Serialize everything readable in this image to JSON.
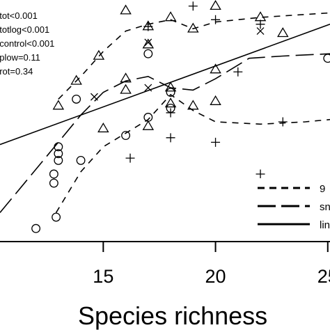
{
  "chart_data": {
    "type": "scatter",
    "xlabel": "Species richness",
    "ylabel": "",
    "title": "",
    "xlim": [
      10.4,
      25.1
    ],
    "ylim": [
      0,
      10
    ],
    "xticks": [
      15,
      20,
      25
    ],
    "xtick_labels": [
      "15",
      "20",
      "25"
    ],
    "stats": [
      "ptot<0.001",
      "ptotlog<0.001",
      "pcontrol<0.001",
      "pplow=0.11",
      "prot=0.34"
    ],
    "legend": {
      "position": "bottom-right",
      "entries": [
        {
          "label": "9",
          "style": "short-dash"
        },
        {
          "label": "sn",
          "style": "long-dash"
        },
        {
          "label": "lin",
          "style": "solid"
        }
      ]
    },
    "series": [
      {
        "marker": "triangle",
        "points": [
          {
            "x": 13.0,
            "y": 5.7
          },
          {
            "x": 13.8,
            "y": 6.8
          },
          {
            "x": 14.8,
            "y": 7.9
          },
          {
            "x": 16.0,
            "y": 6.9
          },
          {
            "x": 16.0,
            "y": 9.9
          },
          {
            "x": 17.0,
            "y": 9.2
          },
          {
            "x": 17.0,
            "y": 8.4
          },
          {
            "x": 17.0,
            "y": 4.8
          },
          {
            "x": 18.0,
            "y": 9.6
          },
          {
            "x": 18.0,
            "y": 6.5
          },
          {
            "x": 18.0,
            "y": 5.8
          },
          {
            "x": 19.0,
            "y": 9.1
          },
          {
            "x": 19.0,
            "y": 5.7
          },
          {
            "x": 20.0,
            "y": 10.1
          },
          {
            "x": 20.0,
            "y": 7.3
          },
          {
            "x": 20.0,
            "y": 5.9
          },
          {
            "x": 22.0,
            "y": 9.6
          },
          {
            "x": 23.0,
            "y": 8.9
          },
          {
            "x": 15.0,
            "y": 4.7
          },
          {
            "x": 16.0,
            "y": 6.4
          }
        ]
      },
      {
        "marker": "circle",
        "points": [
          {
            "x": 12.0,
            "y": 0.3
          },
          {
            "x": 12.8,
            "y": 2.3
          },
          {
            "x": 12.8,
            "y": 2.7
          },
          {
            "x": 13.0,
            "y": 3.3
          },
          {
            "x": 13.0,
            "y": 3.6
          },
          {
            "x": 13.0,
            "y": 3.9
          },
          {
            "x": 12.9,
            "y": 0.8
          },
          {
            "x": 13.8,
            "y": 6.0
          },
          {
            "x": 14.0,
            "y": 3.3
          },
          {
            "x": 16.0,
            "y": 4.4
          },
          {
            "x": 17.0,
            "y": 5.2
          },
          {
            "x": 17.0,
            "y": 8.0
          },
          {
            "x": 18.0,
            "y": 5.6
          },
          {
            "x": 18.0,
            "y": 6.3
          },
          {
            "x": 25.0,
            "y": 7.8
          }
        ]
      },
      {
        "marker": "plus",
        "points": [
          {
            "x": 16.2,
            "y": 3.4
          },
          {
            "x": 17.0,
            "y": 9.2
          },
          {
            "x": 18.0,
            "y": 4.3
          },
          {
            "x": 18.0,
            "y": 5.4
          },
          {
            "x": 19.0,
            "y": 10.1
          },
          {
            "x": 20.0,
            "y": 9.5
          },
          {
            "x": 20.0,
            "y": 4.1
          },
          {
            "x": 21.0,
            "y": 7.2
          },
          {
            "x": 22.0,
            "y": 9.3
          },
          {
            "x": 22.0,
            "y": 2.7
          },
          {
            "x": 23.0,
            "y": 5.0
          }
        ]
      },
      {
        "marker": "cross",
        "points": [
          {
            "x": 14.6,
            "y": 6.1
          },
          {
            "x": 17.0,
            "y": 6.5
          },
          {
            "x": 17.0,
            "y": 8.5
          },
          {
            "x": 22.0,
            "y": 9.0
          }
        ]
      }
    ],
    "lines": [
      {
        "style": "short-dash",
        "points": [
          [
            12.9,
            1.0
          ],
          [
            14.0,
            2.8
          ],
          [
            15.0,
            3.9
          ],
          [
            16.0,
            4.5
          ],
          [
            17.0,
            5.1
          ],
          [
            18.0,
            6.2
          ],
          [
            19.0,
            5.5
          ],
          [
            20.0,
            5.0
          ],
          [
            22.0,
            4.9
          ],
          [
            24.0,
            5.0
          ],
          [
            25.1,
            5.1
          ]
        ]
      },
      {
        "style": "short-dash",
        "points": [
          [
            13.0,
            6.0
          ],
          [
            14.0,
            7.0
          ],
          [
            15.0,
            8.1
          ],
          [
            16.0,
            9.0
          ],
          [
            17.0,
            9.3
          ],
          [
            18.0,
            9.5
          ],
          [
            19.0,
            9.1
          ],
          [
            20.0,
            9.4
          ],
          [
            22.0,
            9.6
          ],
          [
            23.5,
            9.7
          ],
          [
            25.1,
            9.8
          ]
        ]
      },
      {
        "style": "long-dash",
        "points": [
          [
            10.4,
            1.0
          ],
          [
            13.0,
            4.1
          ],
          [
            14.0,
            5.3
          ],
          [
            15.0,
            6.3
          ],
          [
            16.0,
            6.8
          ],
          [
            17.0,
            7.0
          ],
          [
            18.0,
            6.5
          ],
          [
            19.0,
            6.4
          ],
          [
            20.0,
            6.9
          ],
          [
            21.5,
            7.8
          ],
          [
            23.0,
            7.9
          ],
          [
            25.1,
            8.0
          ]
        ]
      },
      {
        "style": "solid",
        "points": [
          [
            10.4,
            4.0
          ],
          [
            25.1,
            9.3
          ]
        ]
      }
    ]
  }
}
